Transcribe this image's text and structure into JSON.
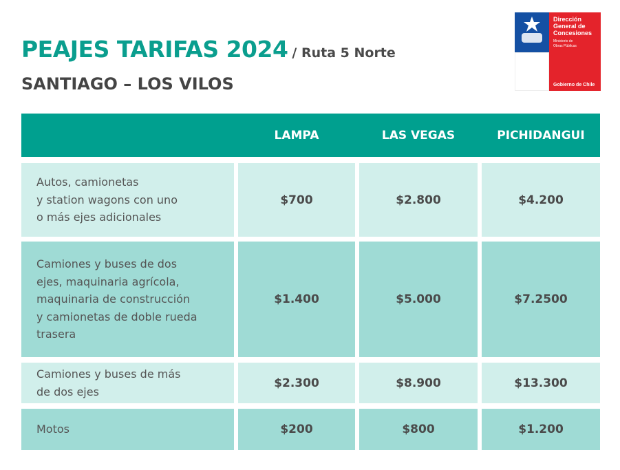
{
  "header": {
    "title": "PEAJES TARIFAS 2024",
    "subtitle": "/ Ruta 5 Norte",
    "route": "SANTIAGO – LOS VILOS"
  },
  "logo": {
    "name": [
      "Dirección",
      "General de",
      "Concesiones"
    ],
    "ministry": [
      "Ministerio de",
      "Obras Públicas"
    ],
    "government": "Gobierno de Chile"
  },
  "table": {
    "columns": [
      "LAMPA",
      "LAS VEGAS",
      "PICHIDANGUI"
    ],
    "rows": [
      {
        "label": [
          "Autos, camionetas",
          "y station wagons con uno",
          "o más ejes adicionales"
        ],
        "prices": [
          "$700",
          "$2.800",
          "$4.200"
        ]
      },
      {
        "label": [
          "Camiones y buses de dos",
          "ejes, maquinaria agrícola,",
          "maquinaria de construcción",
          "y camionetas de doble rueda",
          "trasera"
        ],
        "prices": [
          "$1.400",
          "$5.000",
          "$7.2500"
        ]
      },
      {
        "label": [
          "Camiones y buses de más",
          "de dos ejes"
        ],
        "prices": [
          "$2.300",
          "$8.900",
          "$13.300"
        ]
      },
      {
        "label": [
          "Motos"
        ],
        "prices": [
          "$200",
          "$800",
          "$1.200"
        ]
      }
    ]
  }
}
